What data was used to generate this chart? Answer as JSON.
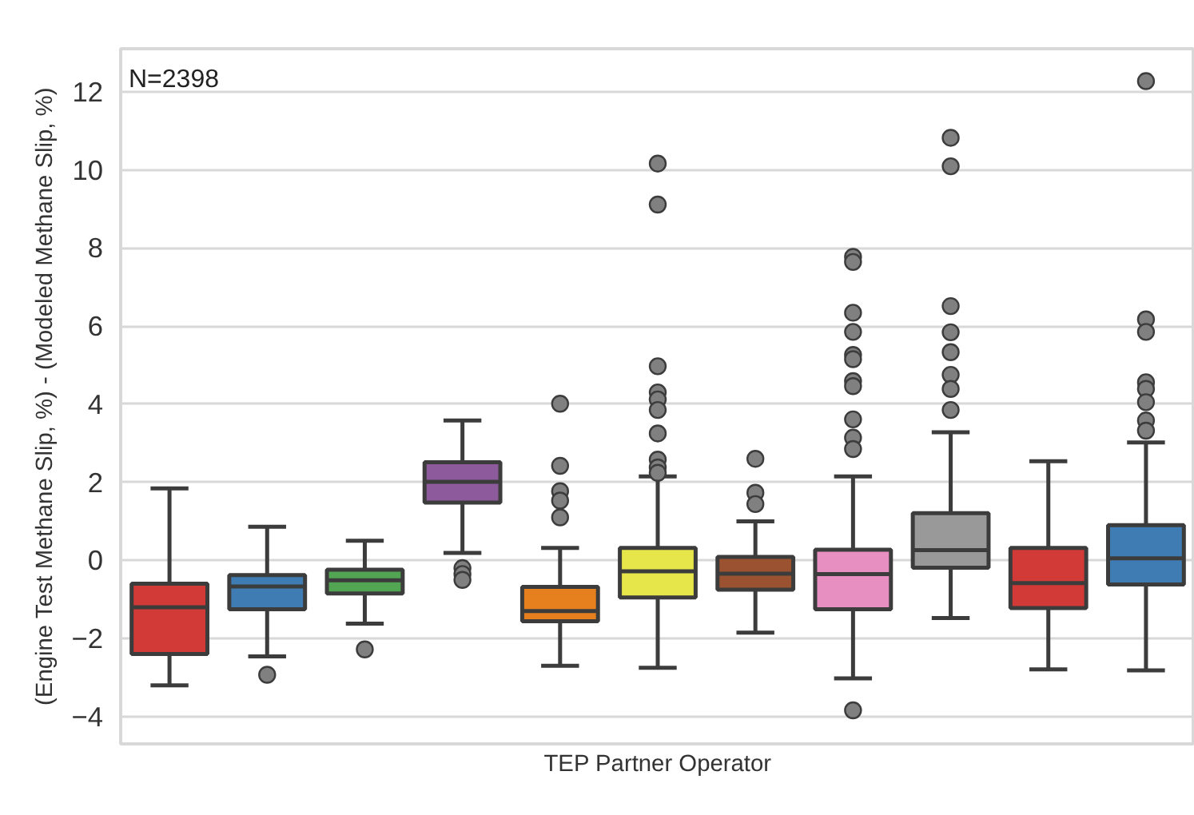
{
  "chart_data": {
    "type": "box",
    "xlabel": "TEP Partner Operator",
    "ylabel": "(Engine Test Methane Slip, %) - (Modeled Methane Slip, %)",
    "annotations": [
      "N=2398"
    ],
    "categories": [
      null,
      null,
      null,
      null,
      null,
      null,
      null,
      null,
      null,
      null,
      null
    ],
    "colors": [
      "#d13a36",
      "#3f7cb3",
      "#52a552",
      "#8d5a9b",
      "#e6801e",
      "#e6e64a",
      "#9a5230",
      "#e68fc0",
      "#999999",
      "#d13a36",
      "#3f7cb3"
    ],
    "boxes": [
      {
        "low": -3.2,
        "q1": -2.4,
        "median": -1.2,
        "q3": -0.6,
        "high": 1.84
      },
      {
        "low": -2.46,
        "q1": -1.25,
        "median": -0.67,
        "q3": -0.38,
        "high": 0.86,
        "outliers": [
          -2.93
        ]
      },
      {
        "low": -1.62,
        "q1": -0.85,
        "median": -0.51,
        "q3": -0.24,
        "high": 0.5,
        "outliers": [
          -2.28
        ]
      },
      {
        "low": 0.19,
        "q1": 1.48,
        "median": 2.01,
        "q3": 2.51,
        "high": 3.58,
        "outliers": [
          -0.2,
          -0.35,
          -0.5
        ]
      },
      {
        "low": -2.7,
        "q1": -1.56,
        "median": -1.3,
        "q3": -0.68,
        "high": 0.32,
        "outliers": [
          4.01,
          2.42,
          1.77,
          1.53,
          1.1
        ]
      },
      {
        "low": -2.75,
        "q1": -0.95,
        "median": -0.28,
        "q3": 0.32,
        "high": 2.15,
        "outliers": [
          10.16,
          9.11,
          4.97,
          4.3,
          4.12,
          3.85,
          3.25,
          2.58,
          2.38,
          2.24
        ]
      },
      {
        "low": -1.85,
        "q1": -0.75,
        "median": -0.34,
        "q3": 0.09,
        "high": 1.0,
        "outliers": [
          2.6,
          1.73,
          1.44
        ]
      },
      {
        "low": -3.02,
        "q1": -1.25,
        "median": -0.35,
        "q3": 0.27,
        "high": 2.15,
        "outliers": [
          -3.84,
          7.77,
          7.64,
          6.34,
          5.85,
          5.26,
          5.15,
          4.59,
          4.46,
          3.61,
          3.14,
          2.85
        ]
      },
      {
        "low": -1.48,
        "q1": -0.19,
        "median": 0.26,
        "q3": 1.21,
        "high": 3.28,
        "outliers": [
          10.82,
          10.09,
          6.51,
          5.84,
          5.33,
          4.75,
          4.39,
          3.85
        ]
      },
      {
        "low": -2.79,
        "q1": -1.22,
        "median": -0.58,
        "q3": 0.32,
        "high": 2.54
      },
      {
        "low": -2.82,
        "q1": -0.62,
        "median": 0.05,
        "q3": 0.9,
        "high": 3.02,
        "outliers": [
          12.27,
          6.17,
          5.85,
          4.56,
          4.39,
          4.05,
          3.58,
          3.32
        ]
      }
    ],
    "ylim": [
      -4.7,
      13.1
    ],
    "yticks": [
      -4,
      -2,
      0,
      2,
      4,
      6,
      8,
      10,
      12
    ],
    "grid": "y"
  }
}
